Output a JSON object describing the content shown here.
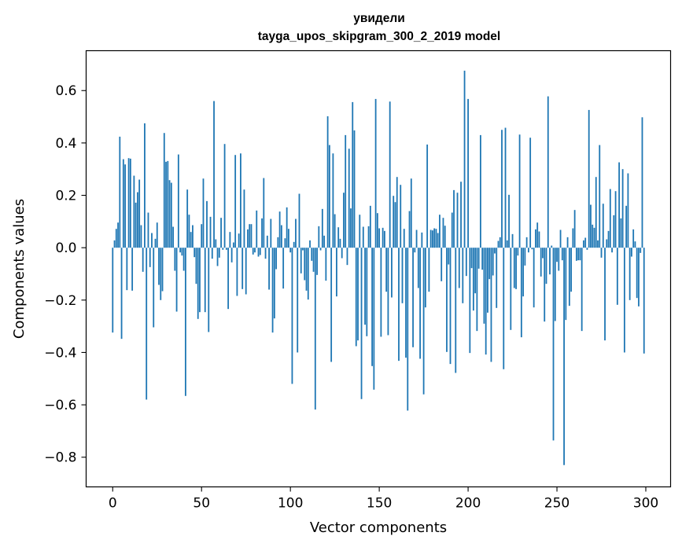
{
  "chart_data": {
    "type": "bar",
    "title": [
      "увидели",
      "tayga_upos_skipgram_300_2_2019 model"
    ],
    "xlabel": "Vector components",
    "ylabel": "Components values",
    "xlim": [
      -14.95,
      313.95
    ],
    "ylim": [
      -0.9133,
      0.7523
    ],
    "xticks": [
      0,
      50,
      100,
      150,
      200,
      250,
      300
    ],
    "xtick_labels": [
      "0",
      "50",
      "100",
      "150",
      "200",
      "250",
      "300"
    ],
    "yticks": [
      -0.8,
      -0.6,
      -0.4,
      -0.2,
      0.0,
      0.2,
      0.4,
      0.6
    ],
    "ytick_labels": [
      "−0.8",
      "−0.6",
      "−0.4",
      "−0.2",
      "0.0",
      "0.2",
      "0.4",
      "0.6"
    ],
    "bar_color": "#1f77b4",
    "values": [
      -0.324,
      0.028,
      0.072,
      0.096,
      0.424,
      -0.348,
      0.338,
      0.318,
      -0.162,
      0.342,
      0.34,
      -0.164,
      0.275,
      0.172,
      0.212,
      0.26,
      0.086,
      -0.092,
      0.475,
      -0.58,
      0.134,
      -0.074,
      0.056,
      -0.304,
      0.034,
      0.096,
      -0.142,
      -0.2,
      -0.166,
      0.438,
      0.328,
      0.331,
      0.258,
      0.248,
      0.08,
      -0.088,
      -0.244,
      0.356,
      -0.018,
      -0.03,
      -0.088,
      -0.566,
      0.222,
      0.126,
      0.06,
      0.086,
      -0.036,
      -0.138,
      -0.272,
      -0.246,
      0.09,
      0.264,
      -0.246,
      0.178,
      -0.322,
      0.118,
      -0.042,
      0.56,
      0.032,
      -0.07,
      -0.038,
      0.114,
      -0.008,
      0.396,
      -0.008,
      -0.234,
      0.06,
      -0.056,
      0.02,
      0.354,
      -0.184,
      0.054,
      0.36,
      -0.158,
      0.222,
      -0.178,
      0.07,
      0.09,
      0.09,
      -0.026,
      -0.018,
      0.142,
      -0.034,
      -0.028,
      0.112,
      0.266,
      -0.042,
      0.046,
      -0.16,
      0.11,
      -0.324,
      -0.27,
      -0.082,
      0.04,
      0.138,
      0.086,
      -0.156,
      0.036,
      0.154,
      0.072,
      -0.018,
      -0.52,
      0.022,
      0.11,
      -0.4,
      0.206,
      -0.098,
      -0.01,
      -0.124,
      -0.164,
      -0.198,
      0.028,
      -0.05,
      -0.092,
      -0.618,
      -0.104,
      0.082,
      -0.01,
      0.148,
      0.046,
      -0.126,
      0.502,
      0.392,
      -0.436,
      0.36,
      0.128,
      -0.186,
      0.078,
      0.034,
      -0.04,
      0.21,
      0.43,
      -0.066,
      0.378,
      0.15,
      0.556,
      0.448,
      -0.376,
      -0.354,
      0.126,
      -0.578,
      0.08,
      -0.294,
      -0.338,
      0.082,
      0.16,
      -0.452,
      -0.542,
      0.568,
      0.132,
      0.074,
      -0.34,
      0.076,
      0.064,
      -0.168,
      -0.334,
      0.558,
      -0.19,
      0.198,
      0.174,
      0.27,
      -0.432,
      0.24,
      -0.212,
      0.072,
      -0.42,
      -0.622,
      0.14,
      0.264,
      -0.38,
      -0.018,
      0.068,
      -0.154,
      -0.424,
      0.058,
      -0.56,
      -0.228,
      0.394,
      -0.168,
      0.068,
      0.066,
      0.074,
      0.072,
      0.056,
      0.126,
      -0.128,
      0.114,
      0.084,
      -0.398,
      -0.064,
      -0.444,
      0.134,
      0.22,
      -0.478,
      0.21,
      -0.154,
      0.252,
      -0.212,
      0.676,
      -0.108,
      0.568,
      -0.402,
      -0.078,
      -0.24,
      -0.174,
      -0.318,
      -0.08,
      0.43,
      -0.084,
      -0.29,
      -0.408,
      -0.248,
      -0.12,
      -0.436,
      -0.106,
      -0.022,
      -0.23,
      0.026,
      0.04,
      0.45,
      -0.464,
      0.458,
      0.028,
      0.202,
      -0.314,
      0.052,
      -0.154,
      -0.158,
      -0.03,
      0.432,
      -0.342,
      -0.186,
      -0.068,
      0.04,
      -0.018,
      0.42,
      -0.006,
      -0.228,
      0.07,
      0.096,
      0.062,
      -0.11,
      -0.04,
      -0.282,
      -0.138,
      0.578,
      -0.102,
      0.008,
      -0.736,
      -0.28,
      -0.054,
      -0.088,
      0.068,
      -0.048,
      -0.83,
      -0.276,
      0.04,
      -0.222,
      -0.168,
      0.074,
      0.144,
      -0.05,
      -0.048,
      -0.048,
      -0.318,
      0.028,
      0.038,
      -0.008,
      0.526,
      0.164,
      0.088,
      0.076,
      0.27,
      0.028,
      0.392,
      -0.038,
      0.168,
      -0.354,
      0.032,
      0.064,
      0.224,
      -0.018,
      0.124,
      0.216,
      -0.218,
      0.326,
      0.112,
      0.3,
      -0.4,
      0.16,
      0.284,
      -0.2,
      -0.034,
      0.07,
      0.024,
      -0.192,
      -0.224,
      -0.02,
      0.498,
      -0.404
    ]
  }
}
